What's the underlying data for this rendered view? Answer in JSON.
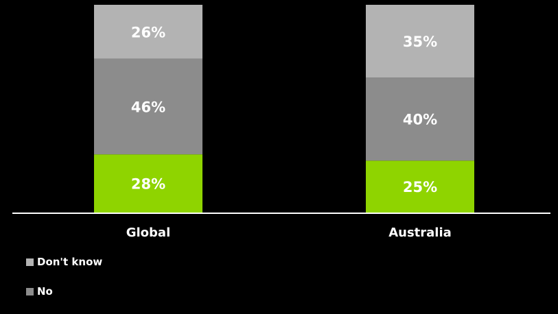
{
  "chart_data": {
    "type": "bar",
    "stacked": true,
    "categories": [
      "Global",
      "Australia"
    ],
    "series": [
      {
        "name": "",
        "color": "#8fd400",
        "values": [
          28,
          25
        ],
        "labels": [
          "28%",
          "25%"
        ]
      },
      {
        "name": "No",
        "color": "#8c8c8c",
        "values": [
          46,
          40
        ],
        "labels": [
          "46%",
          "40%"
        ]
      },
      {
        "name": "Don't know",
        "color": "#b3b3b3",
        "values": [
          26,
          35
        ],
        "labels": [
          "26%",
          "35%"
        ]
      }
    ],
    "ylim": [
      0,
      100
    ],
    "grid": false,
    "legend_position": "bottom-left"
  },
  "legend": [
    {
      "label": "Don't know",
      "color": "#b3b3b3"
    },
    {
      "label": "No",
      "color": "#8c8c8c"
    }
  ]
}
